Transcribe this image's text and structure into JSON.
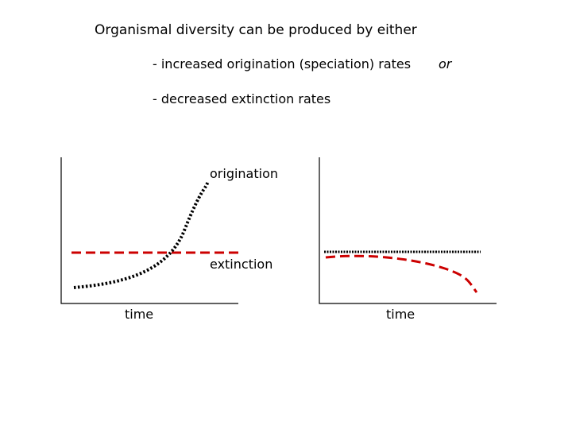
{
  "title": "Organismal diversity can be produced by either",
  "bullets": [
    "- increased origination (speciation) rates",
    "- decreased extinction rates"
  ],
  "or_label": "or",
  "panels": [
    {
      "id": "left",
      "x_label": "time",
      "curves": [
        {
          "name": "origination",
          "label": "origination",
          "style": "dotted",
          "color": "#000000",
          "trend": "exponential-increase"
        },
        {
          "name": "extinction",
          "label": "extinction",
          "style": "dashed",
          "color": "#cc0000",
          "trend": "constant"
        }
      ]
    },
    {
      "id": "right",
      "x_label": "time",
      "curves": [
        {
          "name": "origination",
          "style": "dotted",
          "color": "#000000",
          "trend": "constant"
        },
        {
          "name": "extinction",
          "style": "dashed",
          "color": "#cc0000",
          "trend": "decreasing"
        }
      ]
    }
  ]
}
